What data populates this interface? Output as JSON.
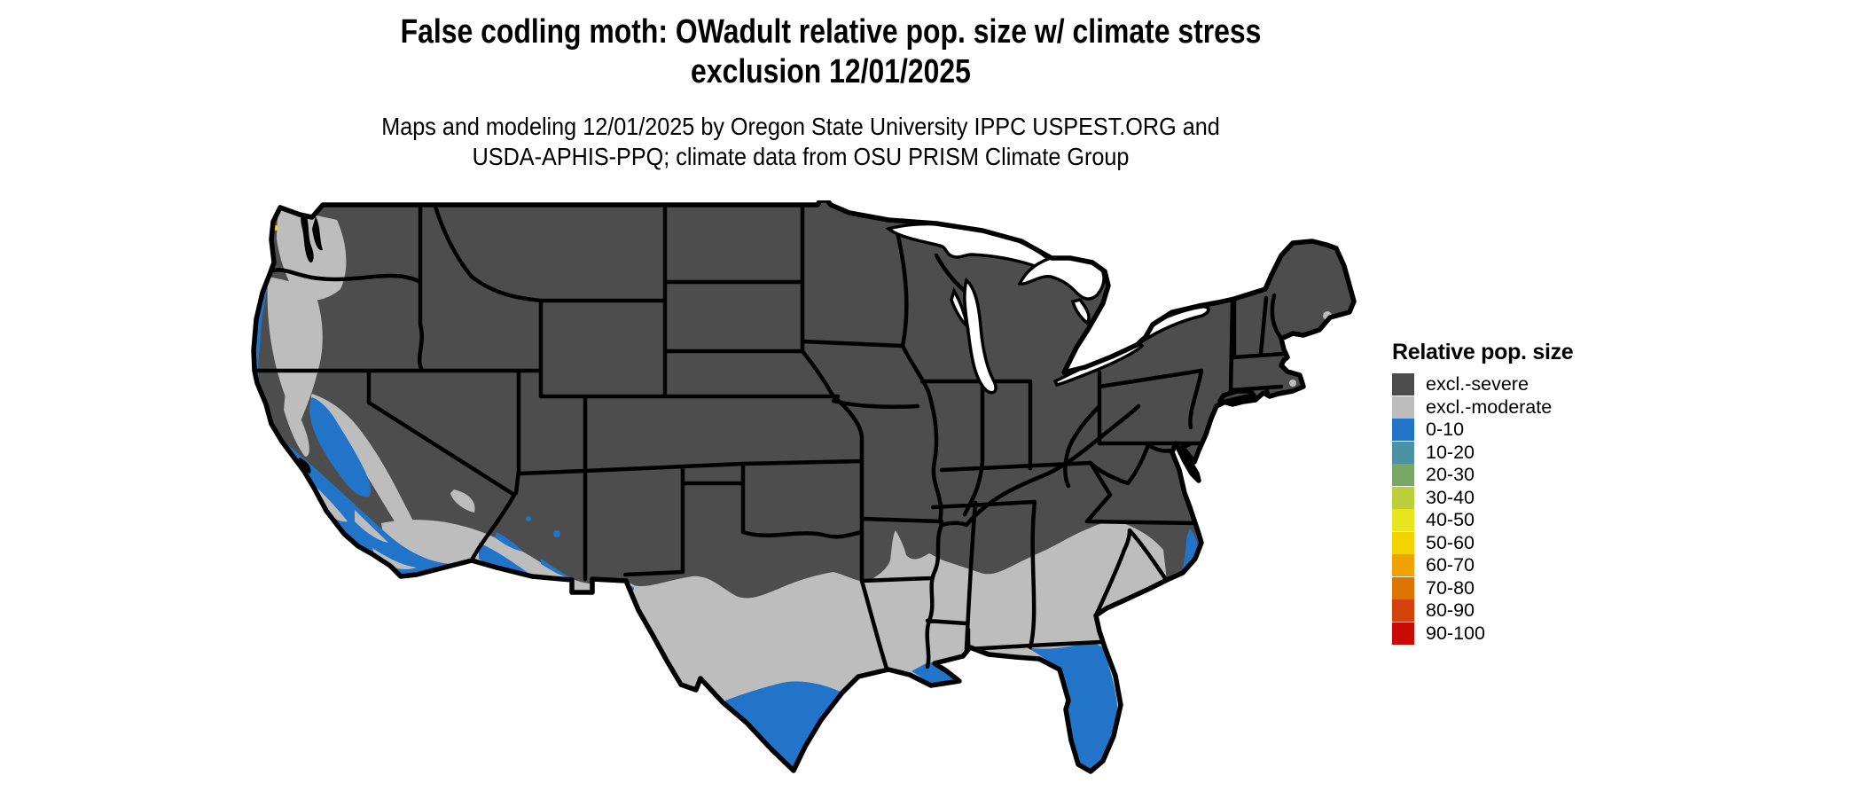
{
  "title": {
    "line1": "False codling moth: OWadult relative pop. size w/ climate stress",
    "line2": "exclusion 12/01/2025"
  },
  "subtitle": {
    "line1": "Maps and modeling 12/01/2025 by Oregon State University IPPC USPEST.ORG and",
    "line2": "USDA-APHIS-PPQ; climate data from OSU PRISM Climate Group"
  },
  "legend": {
    "title": "Relative pop. size",
    "items": [
      {
        "label": "excl.-severe",
        "color": "#4d4d4d"
      },
      {
        "label": "excl.-moderate",
        "color": "#bdbdbd"
      },
      {
        "label": "0-10",
        "color": "#2274c8"
      },
      {
        "label": "10-20",
        "color": "#4b92a4"
      },
      {
        "label": "20-30",
        "color": "#78a766"
      },
      {
        "label": "30-40",
        "color": "#bccf3a"
      },
      {
        "label": "40-50",
        "color": "#e8e41e"
      },
      {
        "label": "50-60",
        "color": "#f3d200"
      },
      {
        "label": "60-70",
        "color": "#f0a202"
      },
      {
        "label": "70-80",
        "color": "#dd7500"
      },
      {
        "label": "80-90",
        "color": "#d2420a"
      },
      {
        "label": "90-100",
        "color": "#c80a02"
      }
    ]
  },
  "map": {
    "type": "choropleth-raster",
    "area": "contiguous United States with state boundaries",
    "colors": {
      "severe": "#4d4d4d",
      "moderate": "#bdbdbd",
      "blue": "#2274c8",
      "water": "#ffffff",
      "border": "#000000",
      "hot_speck": "#e6cf1e"
    },
    "distribution": {
      "excl_severe": "interior and northern United States (most of the country)",
      "excl_moderate": "Pacific Northwest coast and valleys, Sierra foothills, southern Arizona/New Mexico uplands, southern Great Plains through Gulf states and coastal Carolinas, north Florida",
      "pop_0_10": "coastal and Central Valley California, southern Arizona low deserts, south Texas and Gulf Coast fringe, Florida peninsula and Keys, Outer Banks"
    }
  }
}
